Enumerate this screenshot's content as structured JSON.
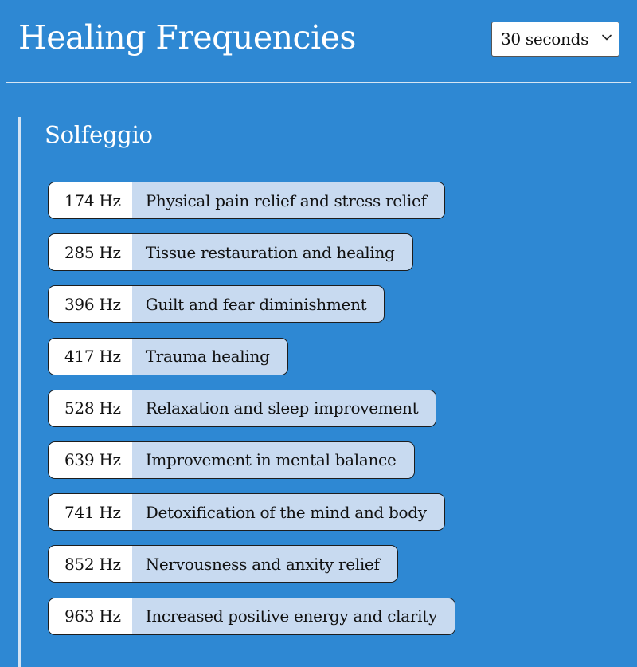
{
  "header": {
    "title": "Healing Frequencies"
  },
  "duration_select": {
    "selected": "30 seconds",
    "icon": "chevron-down-icon"
  },
  "section": {
    "title": "Solfeggio",
    "items": [
      {
        "hz": "174 Hz",
        "description": "Physical pain relief and stress relief"
      },
      {
        "hz": "285 Hz",
        "description": "Tissue restauration and healing"
      },
      {
        "hz": "396 Hz",
        "description": "Guilt and fear diminishment"
      },
      {
        "hz": "417 Hz",
        "description": "Trauma healing"
      },
      {
        "hz": "528 Hz",
        "description": "Relaxation and sleep improvement"
      },
      {
        "hz": "639 Hz",
        "description": "Improvement in mental balance"
      },
      {
        "hz": "741 Hz",
        "description": "Detoxification of the mind and body"
      },
      {
        "hz": "852 Hz",
        "description": "Nervousness and anxity relief"
      },
      {
        "hz": "963 Hz",
        "description": "Increased positive energy and clarity"
      }
    ]
  },
  "colors": {
    "background": "#2e88d3",
    "item_description_bg": "#c8daf0",
    "item_hz_bg": "#ffffff",
    "section_border": "#d3e3f4"
  }
}
